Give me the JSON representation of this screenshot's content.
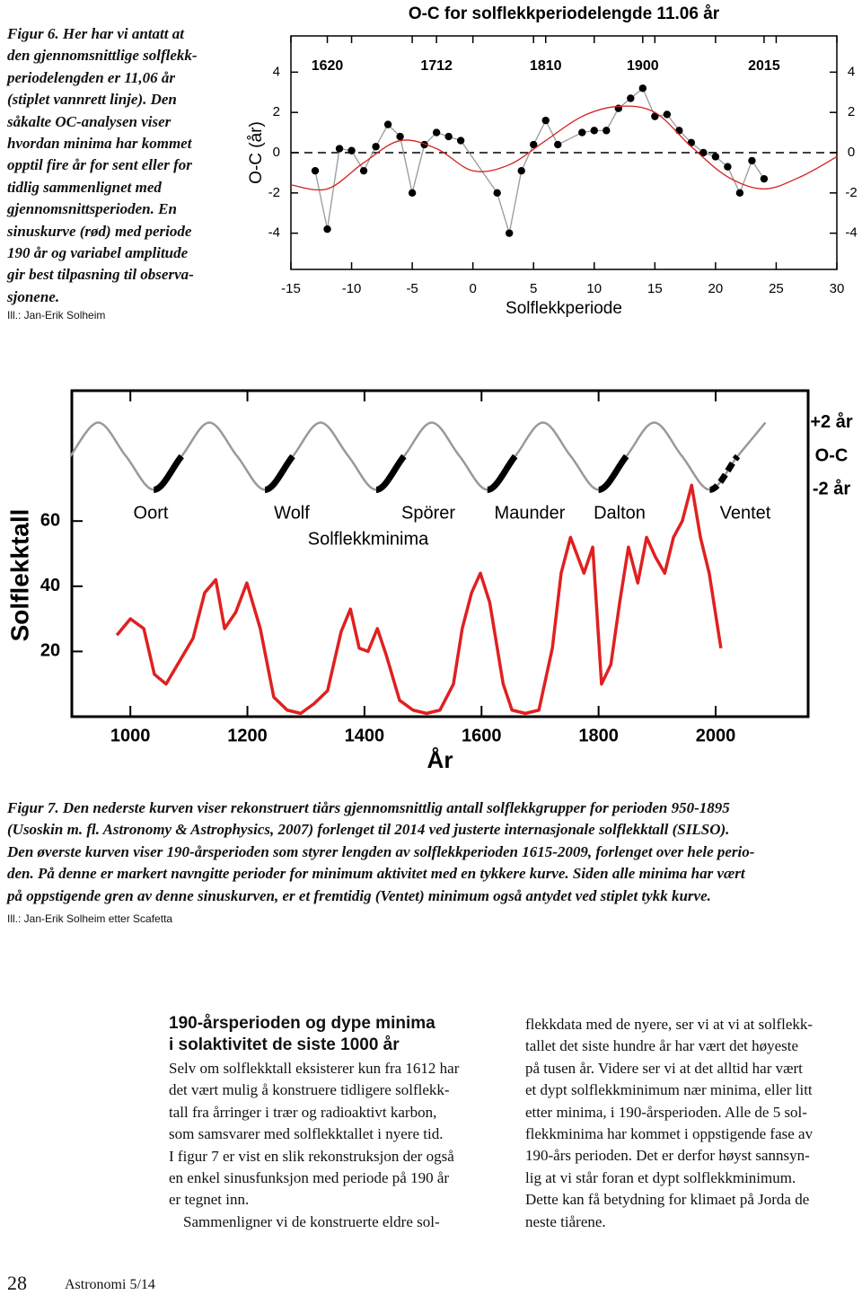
{
  "figure6": {
    "caption_lines": [
      "Figur 6. Her har vi antatt at",
      "den gjennomsnittlige solflekk-",
      "periodelengden er 11,06 år",
      "(stiplet vannrett linje). Den",
      "såkalte OC-analysen viser",
      "hvordan minima har kommet",
      "opptil fire år for sent eller for",
      "tidlig sammenlignet med",
      "gjennomsnittsperioden. En",
      "sinuskurve (rød) med periode",
      "190 år og variabel amplitude",
      "gir best tilpasning til observa-",
      "sjonene."
    ],
    "credit": "Ill.: Jan-Erik Solheim",
    "chart_data": {
      "type": "line",
      "title": "O-C for solflekkperiodelengde 11.06 år",
      "xlabel": "Solflekkperiode",
      "ylabel": "O-C (år)",
      "xlim": [
        -15,
        30
      ],
      "ylim": [
        -5.8,
        5.8
      ],
      "xticks": [
        -15,
        -10,
        -5,
        0,
        5,
        10,
        15,
        20,
        25,
        30
      ],
      "yticks": [
        -4,
        -2,
        0,
        2,
        4
      ],
      "yticks_both_sides": true,
      "x2ticks": [
        {
          "value": -12,
          "label": "1620"
        },
        {
          "value": -3,
          "label": "1712"
        },
        {
          "value": 6,
          "label": "1810"
        },
        {
          "value": 14,
          "label": "1900"
        },
        {
          "value": 24,
          "label": "2015"
        }
      ],
      "hline": {
        "value": 0,
        "dash": true,
        "color": "#000000"
      },
      "series": [
        {
          "color": "#000000",
          "line_color": "#999999",
          "marker": true,
          "x": [
            -13,
            -12,
            -11,
            -10,
            -9,
            -8,
            -7,
            -6,
            -5,
            -4,
            -3,
            -2,
            -1,
            2,
            3,
            4,
            5,
            6,
            7,
            9,
            10,
            11,
            12,
            13,
            14,
            15,
            16,
            17,
            18,
            19,
            20,
            21,
            22,
            23,
            24
          ],
          "values": [
            -0.9,
            -3.8,
            0.2,
            0.1,
            -0.9,
            0.3,
            1.4,
            0.8,
            -2.0,
            0.4,
            1.0,
            0.8,
            0.6,
            -2.0,
            -4.0,
            -0.9,
            0.4,
            1.6,
            0.4,
            1.0,
            1.1,
            1.1,
            2.2,
            2.7,
            3.2,
            1.8,
            1.9,
            1.1,
            0.5,
            0,
            -0.2,
            -0.7,
            -2.0,
            -0.4,
            -1.3
          ]
        },
        {
          "color": "#d42020",
          "smooth": true,
          "x": [
            -15,
            -12,
            -9,
            -6,
            -3,
            0,
            3,
            6,
            9,
            12,
            15,
            18,
            21,
            24,
            27,
            30
          ],
          "values": [
            -1.6,
            -1.8,
            -0.5,
            0.6,
            0.2,
            -0.9,
            -0.6,
            0.6,
            1.8,
            2.3,
            2.0,
            0.3,
            -1.2,
            -1.8,
            -1.2,
            -0.2
          ]
        }
      ]
    }
  },
  "figure7": {
    "caption_lines": [
      "Figur 7. Den nederste kurven viser rekonstruert tiårs gjennomsnittlig antall solflekkgrupper for perioden 950-1895",
      "(Usoskin m. fl. Astronomy & Astrophysics, 2007) forlenget til 2014 ved justerte internasjonale solflekktall (SILSO).",
      "Den øverste kurven viser 190-årsperioden som styrer lengden av solflekkperioden 1615-2009, forlenget over hele perio-",
      "den. På denne er markert navngitte perioder for minimum aktivitet med en tykkere kurve. Siden alle minima har vært",
      "på oppstigende gren av denne sinuskurven, er et fremtidig (Ventet) minimum også antydet ved stiplet tykk kurve."
    ],
    "credit": "Ill.: Jan-Erik Solheim etter Scafetta",
    "chart_data": {
      "type": "line",
      "xlabel": "År",
      "ylabel": "Solflekktall",
      "y2label": "O-C",
      "xlim": [
        900,
        2158
      ],
      "ylim": [
        0,
        100
      ],
      "y2lim": [
        -15.5,
        3.9
      ],
      "xticks": [
        1000,
        1200,
        1400,
        1600,
        1800,
        2000
      ],
      "yticks": [
        20,
        40,
        60
      ],
      "y2ticks": [
        {
          "value": 2,
          "label": "+2 år"
        },
        {
          "value": -2,
          "label": "-2 år"
        }
      ],
      "annotations": [
        "Oort",
        "Wolf",
        "Spörer",
        "Maunder",
        "Dalton",
        "Ventet",
        "Solflekkminima"
      ],
      "annotation_color": "#2a5fad",
      "series": [
        {
          "color": "#e02020",
          "width": 3.5,
          "x": [
            977,
            1000,
            1023,
            1041,
            1061,
            1084,
            1107,
            1127,
            1146,
            1161,
            1180,
            1199,
            1222,
            1245,
            1268,
            1291,
            1314,
            1337,
            1360,
            1376,
            1391,
            1406,
            1422,
            1437,
            1460,
            1483,
            1506,
            1529,
            1552,
            1567,
            1583,
            1598,
            1614,
            1637,
            1652,
            1675,
            1698,
            1721,
            1736,
            1752,
            1775,
            1790,
            1805,
            1821,
            1836,
            1851,
            1867,
            1882,
            1897,
            1913,
            1928,
            1943,
            1959,
            1974,
            1989,
            2009
          ],
          "values": [
            25,
            30,
            27,
            13,
            10,
            17,
            24,
            38,
            42,
            27,
            32,
            41,
            27,
            6,
            2,
            1,
            4,
            8,
            26,
            33,
            21,
            20,
            27,
            19,
            5,
            2,
            1,
            2,
            10,
            27,
            38,
            44,
            35,
            10,
            2,
            1,
            2,
            21,
            44,
            55,
            44,
            52,
            10,
            16,
            35,
            52,
            41,
            55,
            49,
            44,
            55,
            60,
            71,
            55,
            44,
            21
          ]
        },
        {
          "color": "#999999",
          "width": 2.5,
          "axis": "y2",
          "smooth": true,
          "x": [
            897.5,
            945,
            992.5,
            1040,
            1087.5,
            1135,
            1182.5,
            1230,
            1277.5,
            1325,
            1372.5,
            1420,
            1467.5,
            1515,
            1562.5,
            1610,
            1657.5,
            1705,
            1752.5,
            1800,
            1847.5,
            1895,
            1942.5,
            1990,
            2037.5,
            2085
          ],
          "values": [
            0,
            2,
            0,
            -2,
            0,
            2,
            0,
            -2,
            0,
            2,
            0,
            -2,
            0,
            2,
            0,
            -2,
            0,
            2,
            0,
            -2,
            0,
            2,
            0,
            -2,
            0,
            2
          ]
        },
        {
          "color": "#000000",
          "width": 7,
          "axis": "y2",
          "smooth": true,
          "x": [
            897.5,
            945,
            992.5,
            1040,
            1087.5,
            1135,
            1182.5,
            1230,
            1277.5,
            1325,
            1372.5,
            1420,
            1467.5,
            1515,
            1562.5,
            1610,
            1657.5,
            1705,
            1752.5,
            1800,
            1847.5,
            1895,
            1942.5,
            1990,
            2037.5,
            2085
          ],
          "values": [
            null,
            null,
            null,
            -2,
            0,
            null,
            null,
            -2,
            0,
            null,
            null,
            -2,
            0,
            null,
            null,
            -2,
            0,
            null,
            null,
            -2,
            0,
            null,
            null,
            null,
            null,
            null
          ]
        },
        {
          "color": "#000000",
          "width": 7,
          "axis": "y2",
          "smooth": true,
          "dash": true,
          "x": [
            897.5,
            945,
            992.5,
            1040,
            1087.5,
            1135,
            1182.5,
            1230,
            1277.5,
            1325,
            1372.5,
            1420,
            1467.5,
            1515,
            1562.5,
            1610,
            1657.5,
            1705,
            1752.5,
            1800,
            1847.5,
            1895,
            1942.5,
            1990,
            2037.5,
            2085
          ],
          "values": [
            null,
            null,
            null,
            null,
            null,
            null,
            null,
            null,
            null,
            null,
            null,
            null,
            null,
            null,
            null,
            null,
            null,
            null,
            null,
            null,
            null,
            null,
            null,
            -2,
            0,
            null
          ]
        }
      ]
    }
  },
  "article": {
    "heading_lines": [
      "190-årsperioden og dype minima",
      "i solaktivitet de siste 1000 år"
    ],
    "column1": [
      "Selv om solflekktall eksisterer kun fra 1612 har",
      "det vært mulig å konstruere tidligere solflekk-",
      "tall fra årringer i trær og radioaktivt karbon,",
      "som samsvarer med solflekktallet i nyere tid.",
      "I figur 7 er vist en slik rekonstruksjon der også",
      "en enkel sinusfunksjon med periode på 190 år",
      "er tegnet inn.",
      "Sammenligner vi de konstruerte eldre sol-"
    ],
    "column2": [
      "flekkdata med de nyere, ser vi at vi at solflekk-",
      "tallet det siste hundre år har vært det høyeste",
      "på tusen år. Videre ser vi at det alltid har vært",
      "et dypt solflekkminimum nær minima, eller litt",
      "etter minima, i 190-årsperioden. Alle de 5 sol-",
      "flekkminima har kommet i oppstigende fase av",
      "190-års perioden. Det er derfor høyst sannsyn-",
      "lig at vi står foran et dypt solflekkminimum.",
      "Dette kan få betydning for klimaet på Jorda de",
      "neste tiårene."
    ]
  },
  "footer": {
    "page": 28,
    "magazine": "Astronomi 5/14"
  }
}
